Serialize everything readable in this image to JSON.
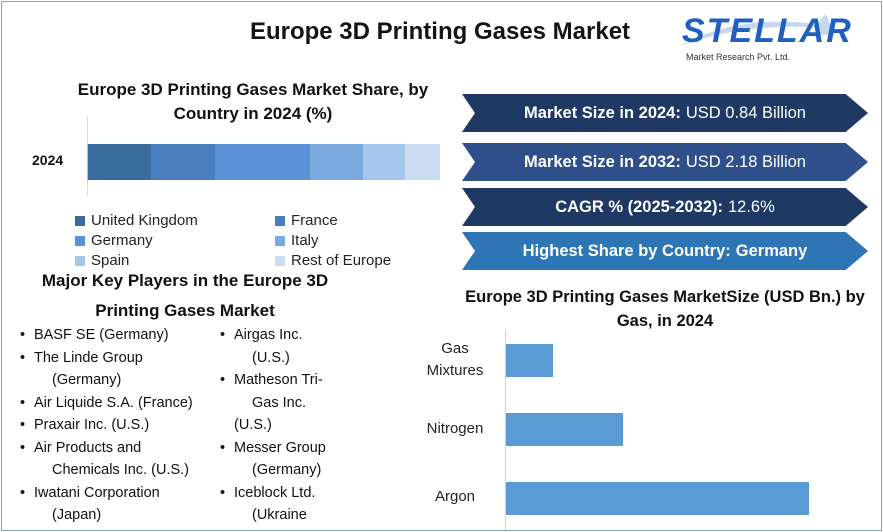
{
  "title": "Europe 3D Printing Gases Market",
  "logo": {
    "name": "STELLAR",
    "subtitle": "Market Research Pvt. Ltd."
  },
  "share_chart": {
    "title": "Europe 3D Printing Gases Market Share, by Country in 2024 (%)",
    "year_label": "2024"
  },
  "stats": [
    {
      "label": "Market Size in 2024:",
      "value": "USD 0.84 Billion",
      "color": "#1f3864"
    },
    {
      "label": "Market Size in 2032:",
      "value": "USD 2.18 Billion",
      "color": "#2e4f8a"
    },
    {
      "label": "CAGR % (2025-2032):",
      "value": "12.6%",
      "color": "#1f3864"
    },
    {
      "label": "Highest Share by Country:",
      "value": "Germany",
      "color": "#2e75b6"
    }
  ],
  "key_players": {
    "title_line1": "Major Key Players in the Europe 3D",
    "title_line2": "Printing Gases Market",
    "left": [
      {
        "name": "BASF SE (Germany)",
        "cont": ""
      },
      {
        "name": "The Linde Group",
        "cont": "(Germany)"
      },
      {
        "name": "Air Liquide S.A. (France)",
        "cont": ""
      },
      {
        "name": "Praxair Inc. (U.S.)",
        "cont": ""
      },
      {
        "name": "Air Products and",
        "cont": "Chemicals Inc. (U.S.)"
      },
      {
        "name": "Iwatani Corporation",
        "cont": "(Japan)"
      }
    ],
    "right": [
      {
        "name": "Airgas Inc.",
        "cont": "(U.S.)"
      },
      {
        "name": "Matheson Tri-",
        "cont": "Gas Inc."
      },
      {
        "name": "",
        "cont": "(U.S.)"
      },
      {
        "name": "Messer Group",
        "cont": "(Germany)"
      },
      {
        "name": "Iceblock Ltd.",
        "cont": "(Ukraine"
      }
    ]
  },
  "gas_chart": {
    "title": "Europe 3D Printing Gases MarketSize (USD Bn.) by Gas, in 2024"
  },
  "chart_data": [
    {
      "type": "bar",
      "orientation": "horizontal-stacked",
      "title": "Europe 3D Printing Gases Market Share, by Country in 2024 (%)",
      "categories": [
        "2024"
      ],
      "series": [
        {
          "name": "United Kingdom",
          "values": [
            18
          ],
          "color": "#3a6b9e"
        },
        {
          "name": "France",
          "values": [
            18
          ],
          "color": "#4a7fbf"
        },
        {
          "name": "Germany",
          "values": [
            27
          ],
          "color": "#5b94d6"
        },
        {
          "name": "Italy",
          "values": [
            15
          ],
          "color": "#7aaae0"
        },
        {
          "name": "Spain",
          "values": [
            12
          ],
          "color": "#a7c6eb"
        },
        {
          "name": "Rest of Europe",
          "values": [
            10
          ],
          "color": "#c9dcf2"
        }
      ],
      "xlim": [
        0,
        100
      ],
      "legend": "bottom"
    },
    {
      "type": "bar",
      "orientation": "horizontal",
      "title": "Europe 3D Printing Gases MarketSize (USD Bn.) by Gas, in 2024",
      "categories": [
        "Gas Mixtures",
        "Nitrogen",
        "Argon"
      ],
      "values": [
        0.08,
        0.2,
        0.52
      ],
      "color": "#5b9bd5",
      "xlim": [
        0,
        0.64
      ]
    }
  ]
}
